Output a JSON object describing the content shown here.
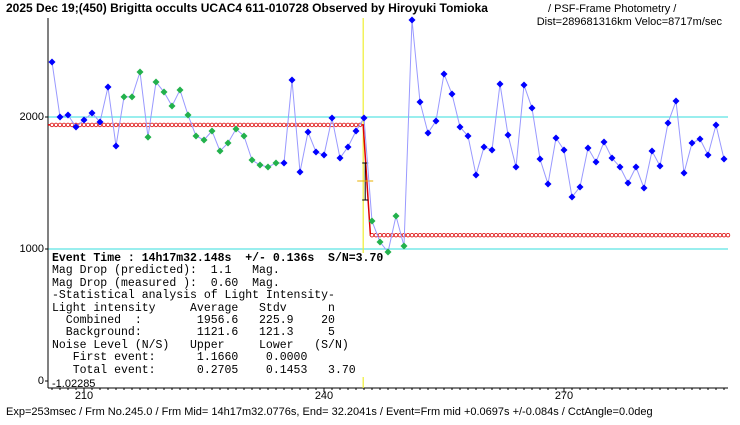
{
  "chart_data": {
    "type": "scatter",
    "title": "2025 Dec 19;(450) Brigitta occults UCAC4 611-010728 Observed by Hiroyuki Tomioka",
    "subtitle": "/ PSF-Frame Photometry /",
    "subtitle2": "Dist=289681316km Veloc=8717m/sec",
    "footer": "Exp=253msec / Frm No.245.0 / Frm Mid= 14h17m32.0776s, End= 32.2041s / Event=Frm mid +0.0697s +/-0.084s / CctAngle=0.0deg",
    "corner_label": "-1.02285",
    "info": [
      "Event Time : 14h17m32.148s  +/- 0.136s  S/N=3.70",
      "Mag Drop (predicted):  1.1   Mag.",
      "Mag Drop (measured ):  0.60  Mag.",
      "-Statistical analysis of Light Intensity-",
      "Light intensity     Average   Stdv      n",
      "  Combined  :        1956.6   225.9    20",
      "  Background:        1121.6   121.3     5",
      "Noise Level (N/S)   Upper     Lower   (S/N)",
      "   First event:      1.1660    0.0000",
      "   Total event:      0.2705    0.1453   3.70"
    ],
    "xlim": [
      205.5,
      290.5
    ],
    "xticks": [
      210,
      240,
      270
    ],
    "ylim": [
      -53,
      2750
    ],
    "yticks": [
      0,
      1000,
      2000
    ],
    "grid_color": "#33dddd",
    "event_x": 244.9,
    "event_color": "#eeee33",
    "series": [
      {
        "line_color": "#9999ff",
        "x": [
          206,
          207,
          208,
          209,
          210,
          211,
          212,
          213,
          214,
          215,
          216,
          217,
          218,
          219,
          220,
          221,
          222,
          223,
          224,
          225,
          226,
          227,
          228,
          229,
          230,
          231,
          232,
          233,
          234,
          235,
          236,
          237,
          238,
          239,
          240,
          241,
          242,
          243,
          244,
          245,
          246,
          247,
          248,
          249,
          250,
          251,
          252,
          253,
          254,
          255,
          256,
          257,
          258,
          259,
          260,
          261,
          262,
          263,
          264,
          265,
          266,
          267,
          268,
          269,
          270,
          271,
          272,
          273,
          274,
          275,
          276,
          277,
          278,
          279,
          280,
          281,
          282,
          283,
          284,
          285,
          286,
          287,
          288,
          289,
          290
        ],
        "values": [
          2417,
          2000,
          2015,
          1924,
          1977,
          2030,
          1962,
          2227,
          1780,
          2152,
          2152,
          2341,
          1848,
          2265,
          2189,
          2083,
          2205,
          2015,
          1856,
          1826,
          1894,
          1742,
          1803,
          1909,
          1856,
          1674,
          1636,
          1621,
          1652,
          1652,
          2280,
          1583,
          1886,
          1735,
          1712,
          1992,
          1689,
          1773,
          1894,
          1992,
          1212,
          1053,
          977,
          1250,
          1023,
          2735,
          2114,
          1879,
          1970,
          2326,
          2174,
          1924,
          1856,
          1561,
          1773,
          1750,
          2250,
          1864,
          1621,
          2242,
          2068,
          1682,
          1492,
          1841,
          1750,
          1394,
          1470,
          1765,
          1659,
          1811,
          1689,
          1621,
          1500,
          1621,
          1462,
          1742,
          1629,
          1955,
          2121,
          1576,
          1803,
          1833,
          1712,
          1939,
          1682
        ],
        "colors": [
          "#0000ff",
          "#0000ff",
          "#0000ff",
          "#0000ff",
          "#0000ff",
          "#0000ff",
          "#0000ff",
          "#0000ff",
          "#0000ff",
          "#22b14c",
          "#22b14c",
          "#22b14c",
          "#22b14c",
          "#22b14c",
          "#22b14c",
          "#22b14c",
          "#22b14c",
          "#22b14c",
          "#22b14c",
          "#22b14c",
          "#22b14c",
          "#22b14c",
          "#22b14c",
          "#22b14c",
          "#22b14c",
          "#22b14c",
          "#22b14c",
          "#22b14c",
          "#22b14c",
          "#0000ff",
          "#0000ff",
          "#0000ff",
          "#0000ff",
          "#0000ff",
          "#0000ff",
          "#0000ff",
          "#0000ff",
          "#0000ff",
          "#0000ff",
          "#0000ff",
          "#22b14c",
          "#22b14c",
          "#22b14c",
          "#22b14c",
          "#22b14c",
          "#0000ff",
          "#0000ff",
          "#0000ff",
          "#0000ff",
          "#0000ff",
          "#0000ff",
          "#0000ff",
          "#0000ff",
          "#0000ff",
          "#0000ff",
          "#0000ff",
          "#0000ff",
          "#0000ff",
          "#0000ff",
          "#0000ff",
          "#0000ff",
          "#0000ff",
          "#0000ff",
          "#0000ff",
          "#0000ff",
          "#0000ff",
          "#0000ff",
          "#0000ff",
          "#0000ff",
          "#0000ff",
          "#0000ff",
          "#0000ff",
          "#0000ff",
          "#0000ff",
          "#0000ff",
          "#0000ff",
          "#0000ff",
          "#0000ff",
          "#0000ff",
          "#0000ff",
          "#0000ff",
          "#0000ff",
          "#0000ff",
          "#0000ff",
          "#0000ff"
        ]
      }
    ],
    "model": {
      "color": "#dd0000",
      "x": [
        205.5,
        244.9,
        245.8,
        290.5
      ],
      "values": [
        1940,
        1940,
        1105,
        1105
      ]
    }
  }
}
